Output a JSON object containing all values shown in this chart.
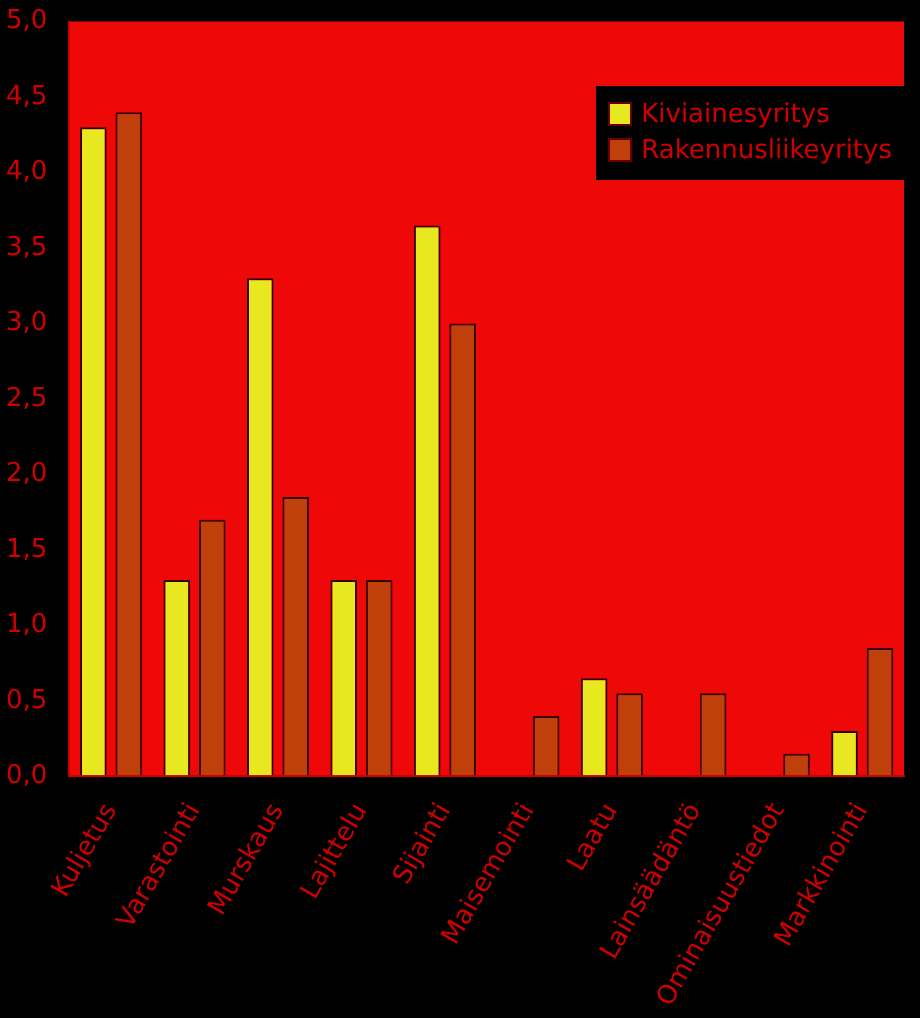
{
  "chart_data": {
    "type": "bar",
    "categories": [
      "Kuljetus",
      "Varastointi",
      "Murskaus",
      "Lajittelu",
      "Sijainti",
      "Maisemointi",
      "Laatu",
      "Lainsäädäntö",
      "Ominaisuustiedot",
      "Markkinointi"
    ],
    "series": [
      {
        "name": "Kiviainesyritys",
        "color": "#e8e820",
        "values": [
          4.3,
          1.3,
          3.3,
          1.3,
          3.65,
          0,
          0.65,
          0,
          0,
          0.3
        ]
      },
      {
        "name": "Rakennusliikeyritys",
        "color": "#c0400c",
        "values": [
          4.4,
          1.7,
          1.85,
          1.3,
          3.0,
          0.4,
          0.55,
          0.55,
          0.15,
          0.85
        ]
      }
    ],
    "ylim": [
      0,
      5
    ],
    "yticks": [
      {
        "value": 0,
        "label": "0,0"
      },
      {
        "value": 0.5,
        "label": "0,5"
      },
      {
        "value": 1,
        "label": "1,0"
      },
      {
        "value": 1.5,
        "label": "1,5"
      },
      {
        "value": 2,
        "label": "2,0"
      },
      {
        "value": 2.5,
        "label": "2,5"
      },
      {
        "value": 3,
        "label": "3,0"
      },
      {
        "value": 3.5,
        "label": "3,5"
      },
      {
        "value": 4,
        "label": "4,0"
      },
      {
        "value": 4.5,
        "label": "4,5"
      },
      {
        "value": 5,
        "label": "5,0"
      }
    ],
    "grid": false,
    "legend": "top right"
  }
}
